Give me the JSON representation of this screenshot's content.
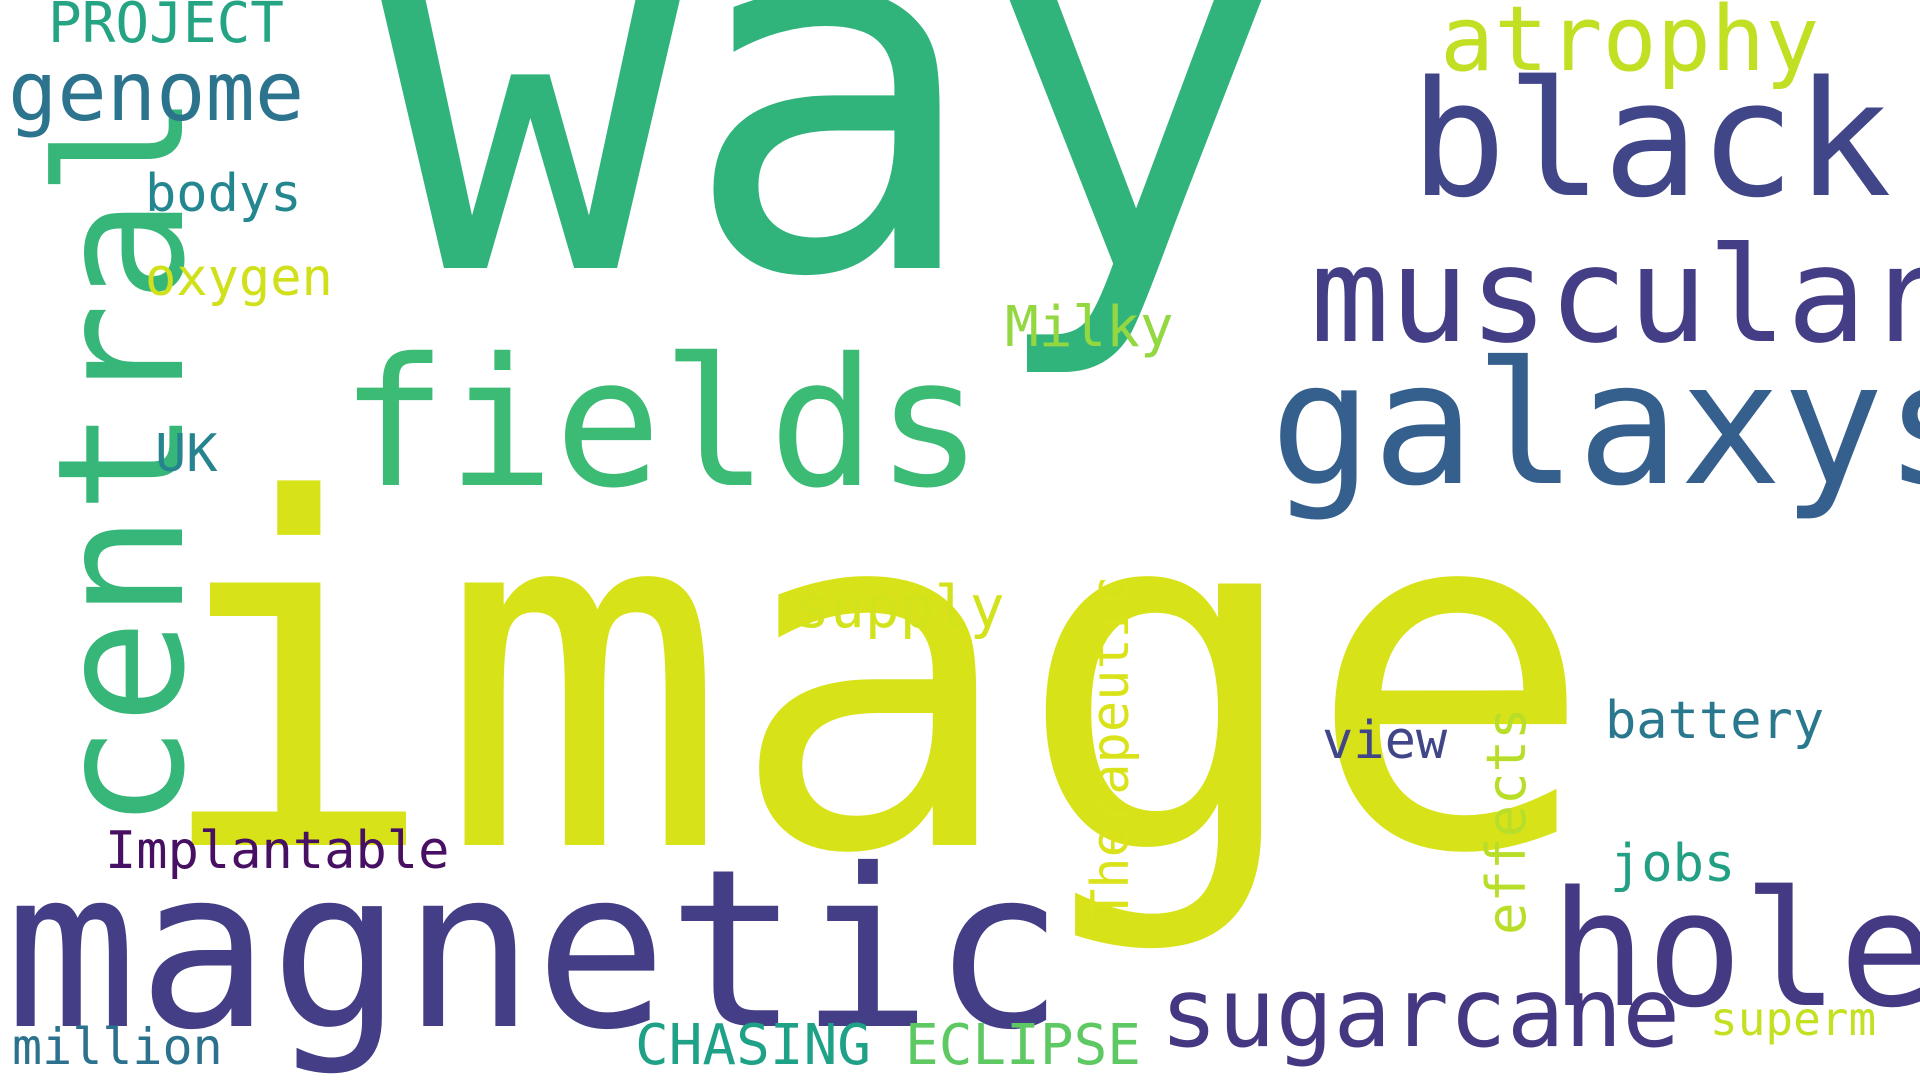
{
  "words": {
    "way": {
      "text": "way",
      "color": "#31b37c"
    },
    "image": {
      "text": "image",
      "color": "#d8e219"
    },
    "magnetic": {
      "text": "magnetic",
      "color": "#433e85"
    },
    "fields": {
      "text": "fields",
      "color": "#3cbb75"
    },
    "central": {
      "text": "central",
      "color": "#36b678"
    },
    "galaxys": {
      "text": "galaxys",
      "color": "#355f8d"
    },
    "muscular": {
      "text": "muscular",
      "color": "#433e85"
    },
    "black": {
      "text": "black",
      "color": "#404688"
    },
    "hole": {
      "text": "hole",
      "color": "#443983"
    },
    "sugarcane": {
      "text": "sugarcane",
      "color": "#453781"
    },
    "atrophy": {
      "text": "atrophy",
      "color": "#c2df23"
    },
    "genome": {
      "text": "genome",
      "color": "#2c738e"
    },
    "project": {
      "text": "PROJECT",
      "color": "#25a484"
    },
    "bodys": {
      "text": "bodys",
      "color": "#24868e"
    },
    "oxygen": {
      "text": "oxygen",
      "color": "#d0e11c"
    },
    "uk": {
      "text": "UK",
      "color": "#25848e"
    },
    "milky": {
      "text": "Milky",
      "color": "#93d741"
    },
    "supply": {
      "text": "supply",
      "color": "#d2e21b"
    },
    "therapeutic": {
      "text": "Therapeutic",
      "color": "#dae319"
    },
    "view": {
      "text": "view",
      "color": "#404688"
    },
    "effects": {
      "text": "effects",
      "color": "#b8de29"
    },
    "battery": {
      "text": "battery",
      "color": "#2a788e"
    },
    "jobs": {
      "text": "jobs",
      "color": "#23a083"
    },
    "implantable": {
      "text": "Implantable",
      "color": "#471063"
    },
    "million": {
      "text": "million",
      "color": "#2c728e"
    },
    "chasing": {
      "text": "CHASING",
      "color": "#1fa187"
    },
    "eclipse": {
      "text": "ECLIPSE",
      "color": "#5ec962"
    },
    "superm": {
      "text": "superm",
      "color": "#c5e021"
    }
  }
}
